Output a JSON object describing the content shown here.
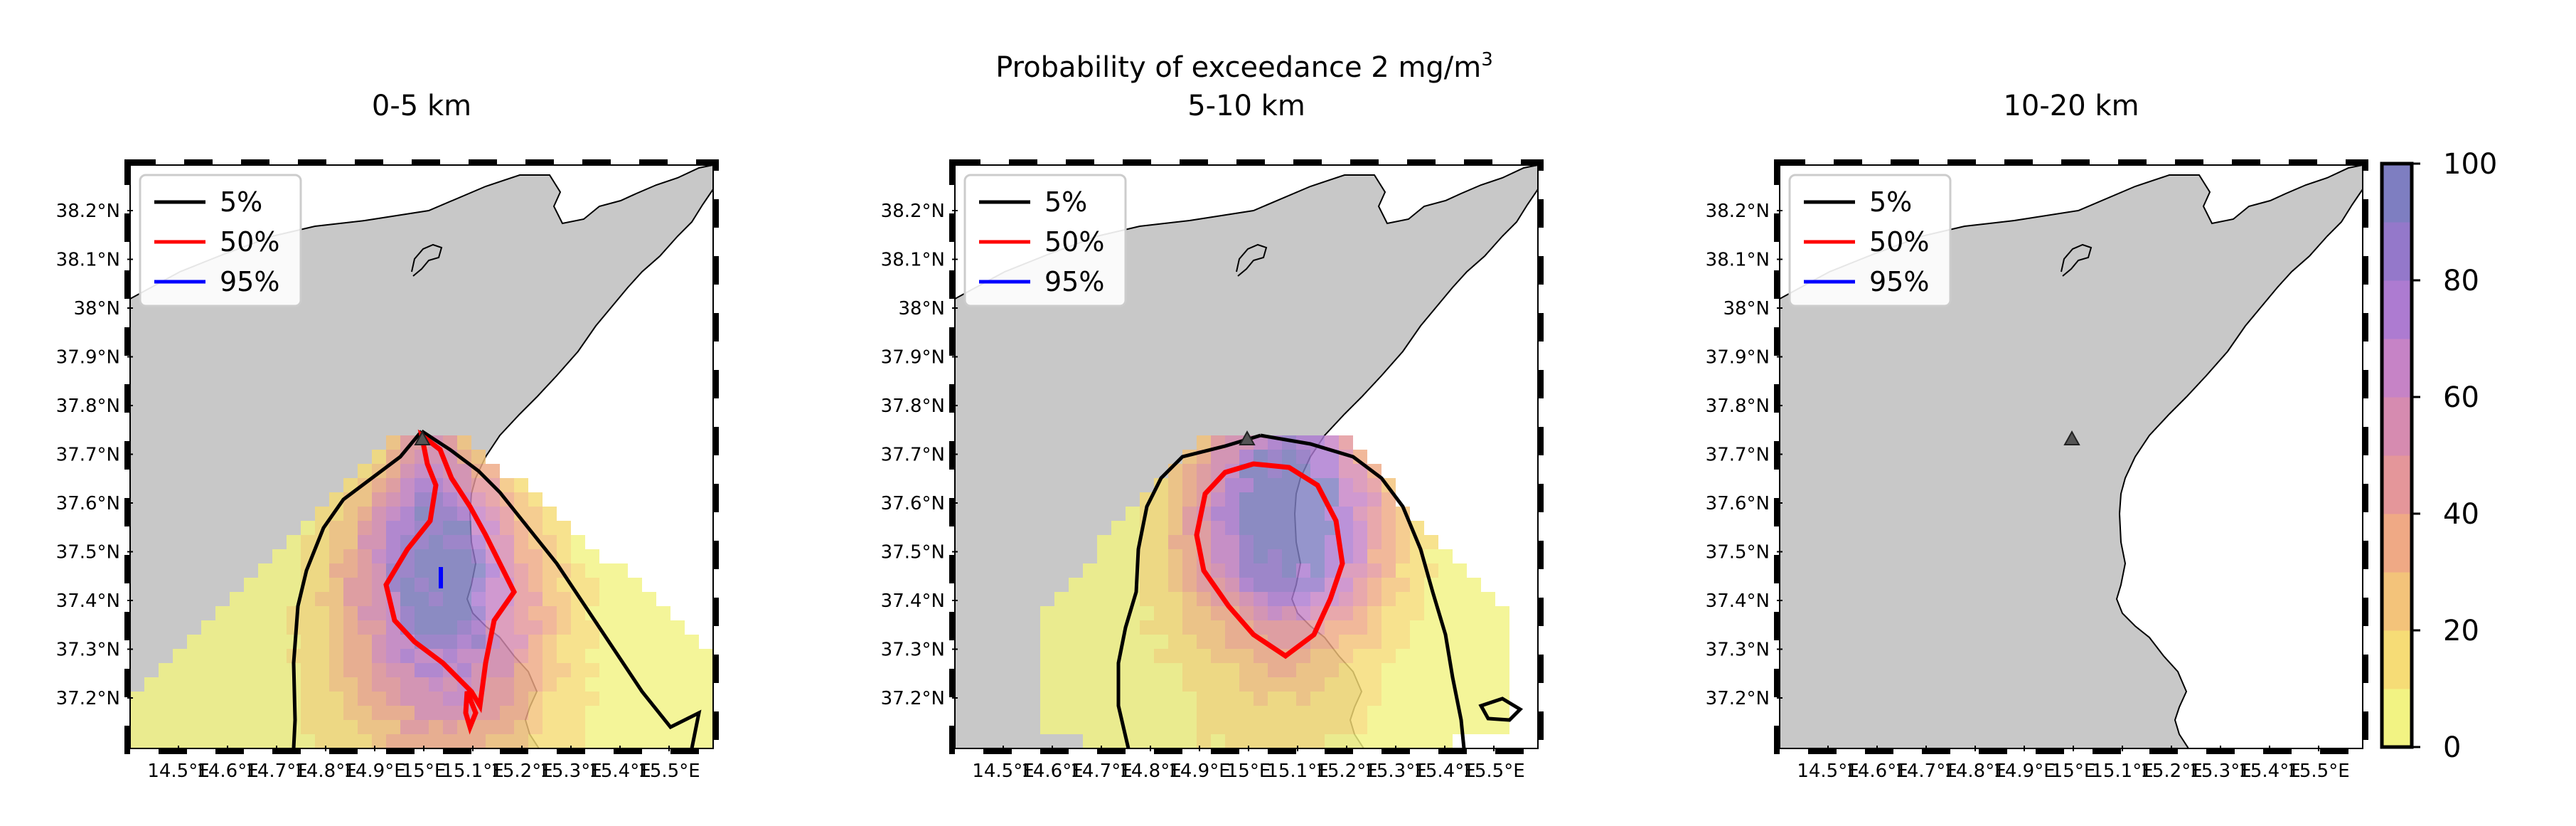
{
  "title": {
    "main": "Probability of exceedance 2 mg/m",
    "sup": "3"
  },
  "lat_ticks": [
    "38.2°N",
    "38.1°N",
    "38°N",
    "37.9°N",
    "37.8°N",
    "37.7°N",
    "37.6°N",
    "37.5°N",
    "37.4°N",
    "37.3°N",
    "37.2°N"
  ],
  "lon_ticks": [
    "14.5°E",
    "14.6°E",
    "14.7°E",
    "14.8°E",
    "14.9°E",
    "15°E",
    "15.1°E",
    "15.2°E",
    "15.3°E",
    "15.4°E",
    "15.5°E"
  ],
  "legend": [
    {
      "label": "5%",
      "color": "#000000"
    },
    {
      "label": "50%",
      "color": "#ff0000"
    },
    {
      "label": "95%",
      "color": "#0000ff"
    }
  ],
  "panels": [
    {
      "title": "0-5 km"
    },
    {
      "title": "5-10 km"
    },
    {
      "title": "10-20 km"
    }
  ],
  "colorbar": {
    "ticks": [
      "0",
      "20",
      "40",
      "60",
      "80",
      "100"
    ],
    "colors": [
      "#f2f383",
      "#f6dc76",
      "#f3c37a",
      "#efa985",
      "#e4969a",
      "#d68bb0",
      "#c683c6",
      "#ad7bd1",
      "#9478ca",
      "#7e7ec1"
    ]
  },
  "chart_data": {
    "type": "heatmap",
    "title": "Probability of exceedance 2 mg/m3",
    "panels": [
      "0-5 km",
      "5-10 km",
      "10-20 km"
    ],
    "contour_levels": [
      "5%",
      "50%",
      "95%"
    ],
    "colorbar_range": [
      0,
      100
    ],
    "xlim": [
      14.4,
      15.6
    ],
    "ylim": [
      37.1,
      38.3
    ]
  }
}
